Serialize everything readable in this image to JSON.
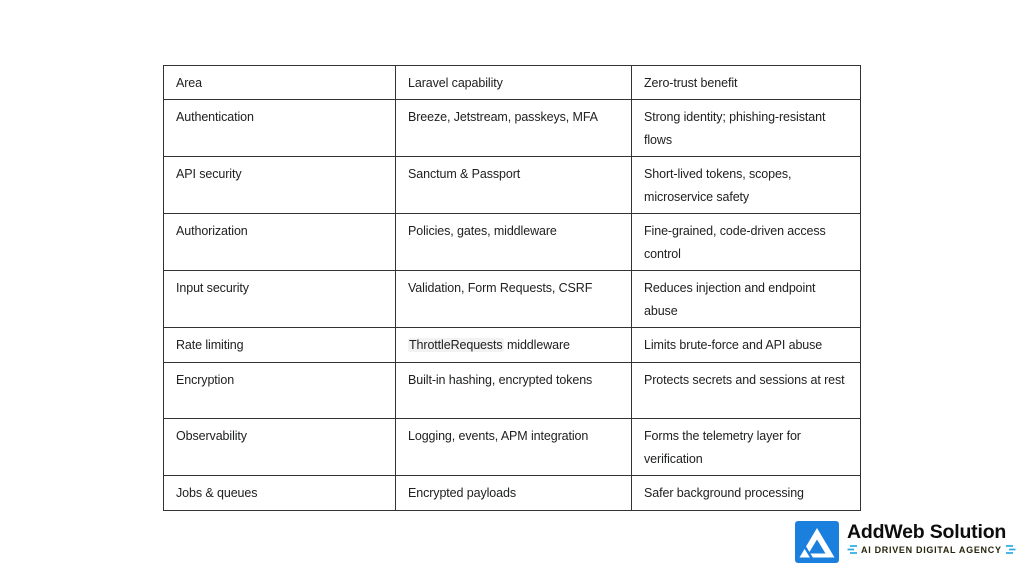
{
  "table": {
    "headers": [
      "Area",
      "Laravel capability",
      "Zero-trust benefit"
    ],
    "rows": [
      {
        "short": false,
        "cells": [
          {
            "parts": [
              {
                "text": "Authentication"
              }
            ]
          },
          {
            "parts": [
              {
                "text": "Breeze, Jetstream, passkeys, MFA"
              }
            ]
          },
          {
            "parts": [
              {
                "text": "Strong identity; phishing-resistant flows"
              }
            ]
          }
        ]
      },
      {
        "short": false,
        "cells": [
          {
            "parts": [
              {
                "text": "API security"
              }
            ]
          },
          {
            "parts": [
              {
                "text": "Sanctum & Passport"
              }
            ]
          },
          {
            "parts": [
              {
                "text": "Short-lived tokens, scopes, microservice safety"
              }
            ]
          }
        ]
      },
      {
        "short": false,
        "cells": [
          {
            "parts": [
              {
                "text": "Authorization"
              }
            ]
          },
          {
            "parts": [
              {
                "text": "Policies, gates, middleware"
              }
            ]
          },
          {
            "parts": [
              {
                "text": "Fine-grained, code-driven access control"
              }
            ]
          }
        ]
      },
      {
        "short": false,
        "cells": [
          {
            "parts": [
              {
                "text": "Input security"
              }
            ]
          },
          {
            "parts": [
              {
                "text": "Validation, Form Requests, CSRF"
              }
            ]
          },
          {
            "parts": [
              {
                "text": "Reduces injection and endpoint abuse"
              }
            ]
          }
        ]
      },
      {
        "short": true,
        "cells": [
          {
            "parts": [
              {
                "text": "Rate limiting"
              }
            ]
          },
          {
            "parts": [
              {
                "text": "ThrottleRequests",
                "code": true
              },
              {
                "text": " middleware"
              }
            ]
          },
          {
            "parts": [
              {
                "text": "Limits brute-force and API abuse"
              }
            ]
          }
        ]
      },
      {
        "short": false,
        "cells": [
          {
            "parts": [
              {
                "text": "Encryption"
              }
            ]
          },
          {
            "parts": [
              {
                "text": "Built-in hashing, encrypted tokens"
              }
            ]
          },
          {
            "parts": [
              {
                "text": "Protects secrets and sessions at rest"
              }
            ]
          }
        ]
      },
      {
        "short": false,
        "cells": [
          {
            "parts": [
              {
                "text": "Observability"
              }
            ]
          },
          {
            "parts": [
              {
                "text": "Logging, events, APM integration"
              }
            ]
          },
          {
            "parts": [
              {
                "text": "Forms the telemetry layer for verification"
              }
            ]
          }
        ]
      },
      {
        "short": true,
        "cells": [
          {
            "parts": [
              {
                "text": "Jobs & queues"
              }
            ]
          },
          {
            "parts": [
              {
                "text": "Encrypted payloads"
              }
            ]
          },
          {
            "parts": [
              {
                "text": "Safer background processing"
              }
            ]
          }
        ]
      }
    ]
  },
  "logo": {
    "name": "AddWeb Solution",
    "tagline": "AI DRIVEN DIGITAL AGENCY",
    "colors": {
      "icon_blue": "#1b80dd",
      "accent_blue": "#29abe2",
      "tagline_text": "#26240c",
      "name_text": "#0d0d0d"
    }
  }
}
